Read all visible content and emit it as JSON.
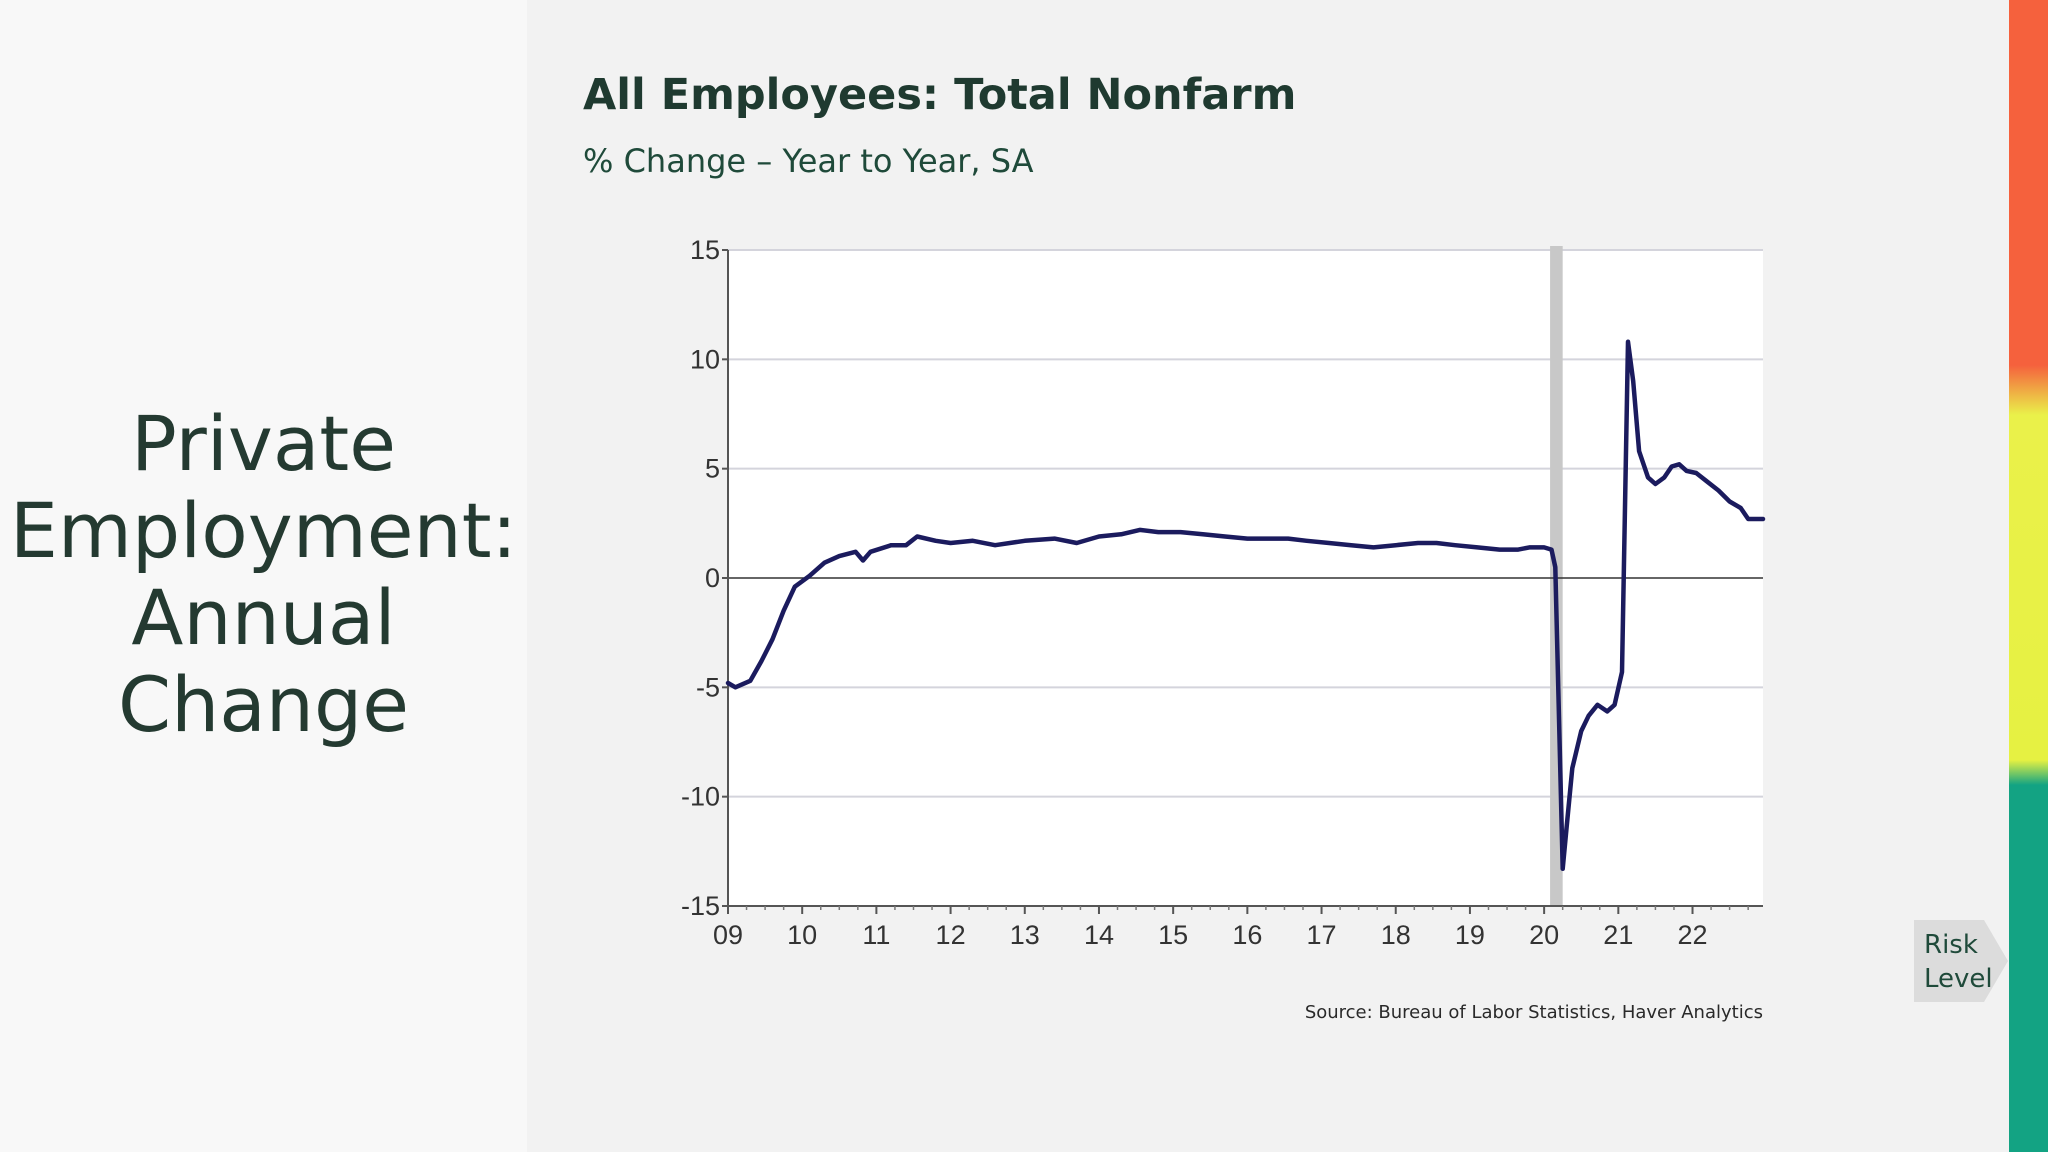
{
  "slide_title_lines": [
    "Private",
    "Employment:",
    "Annual",
    "Change"
  ],
  "risk_label": "Risk Level",
  "colors": {
    "line": "#1b1b5e",
    "recession": "#c8c8c8",
    "risk_high": "#f5613d",
    "risk_medium": "#e6f142",
    "risk_low": "#13a383"
  },
  "chart_data": {
    "type": "line",
    "title": "All Employees: Total Nonfarm",
    "subtitle": "% Change – Year to Year, SA",
    "source": "Source: Bureau of Labor Statistics, Haver Analytics",
    "xlabel": "",
    "ylabel": "",
    "xlim": [
      2009.0,
      2022.95
    ],
    "ylim": [
      -15,
      15
    ],
    "yticks": [
      15,
      10,
      5,
      0,
      -5,
      -10,
      -15
    ],
    "xticks": [
      {
        "x": 2009.0,
        "label": "09"
      },
      {
        "x": 2010.0,
        "label": "10"
      },
      {
        "x": 2011.0,
        "label": "11"
      },
      {
        "x": 2012.0,
        "label": "12"
      },
      {
        "x": 2013.0,
        "label": "13"
      },
      {
        "x": 2014.0,
        "label": "14"
      },
      {
        "x": 2015.0,
        "label": "15"
      },
      {
        "x": 2016.0,
        "label": "16"
      },
      {
        "x": 2017.0,
        "label": "17"
      },
      {
        "x": 2018.0,
        "label": "18"
      },
      {
        "x": 2019.0,
        "label": "19"
      },
      {
        "x": 2020.0,
        "label": "20"
      },
      {
        "x": 2021.0,
        "label": "21"
      },
      {
        "x": 2022.0,
        "label": "22"
      }
    ],
    "grid": true,
    "recession_shading": [
      [
        2020.08,
        2020.25
      ]
    ],
    "series": [
      {
        "points": [
          [
            2009.0,
            -4.8
          ],
          [
            2009.1,
            -5.0
          ],
          [
            2009.3,
            -4.7
          ],
          [
            2009.45,
            -3.8
          ],
          [
            2009.6,
            -2.8
          ],
          [
            2009.75,
            -1.5
          ],
          [
            2009.9,
            -0.4
          ],
          [
            2010.1,
            0.1
          ],
          [
            2010.3,
            0.7
          ],
          [
            2010.5,
            1.0
          ],
          [
            2010.72,
            1.2
          ],
          [
            2010.82,
            0.8
          ],
          [
            2010.92,
            1.2
          ],
          [
            2011.2,
            1.5
          ],
          [
            2011.4,
            1.5
          ],
          [
            2011.55,
            1.9
          ],
          [
            2011.8,
            1.7
          ],
          [
            2012.0,
            1.6
          ],
          [
            2012.3,
            1.7
          ],
          [
            2012.6,
            1.5
          ],
          [
            2013.0,
            1.7
          ],
          [
            2013.4,
            1.8
          ],
          [
            2013.7,
            1.6
          ],
          [
            2014.0,
            1.9
          ],
          [
            2014.3,
            2.0
          ],
          [
            2014.55,
            2.2
          ],
          [
            2014.8,
            2.1
          ],
          [
            2015.1,
            2.1
          ],
          [
            2015.4,
            2.0
          ],
          [
            2015.7,
            1.9
          ],
          [
            2016.0,
            1.8
          ],
          [
            2016.3,
            1.8
          ],
          [
            2016.55,
            1.8
          ],
          [
            2016.8,
            1.7
          ],
          [
            2017.1,
            1.6
          ],
          [
            2017.4,
            1.5
          ],
          [
            2017.7,
            1.4
          ],
          [
            2018.0,
            1.5
          ],
          [
            2018.3,
            1.6
          ],
          [
            2018.55,
            1.6
          ],
          [
            2018.8,
            1.5
          ],
          [
            2019.1,
            1.4
          ],
          [
            2019.4,
            1.3
          ],
          [
            2019.65,
            1.3
          ],
          [
            2019.8,
            1.4
          ],
          [
            2020.0,
            1.4
          ],
          [
            2020.1,
            1.3
          ],
          [
            2020.15,
            0.5
          ],
          [
            2020.25,
            -13.3
          ],
          [
            2020.3,
            -11.5
          ],
          [
            2020.38,
            -8.7
          ],
          [
            2020.5,
            -7.0
          ],
          [
            2020.6,
            -6.3
          ],
          [
            2020.72,
            -5.8
          ],
          [
            2020.85,
            -6.1
          ],
          [
            2020.95,
            -5.8
          ],
          [
            2021.05,
            -4.3
          ],
          [
            2021.13,
            10.8
          ],
          [
            2021.2,
            9.0
          ],
          [
            2021.28,
            5.8
          ],
          [
            2021.4,
            4.6
          ],
          [
            2021.5,
            4.3
          ],
          [
            2021.62,
            4.6
          ],
          [
            2021.72,
            5.1
          ],
          [
            2021.82,
            5.2
          ],
          [
            2021.92,
            4.9
          ],
          [
            2022.05,
            4.8
          ],
          [
            2022.2,
            4.4
          ],
          [
            2022.35,
            4.0
          ],
          [
            2022.5,
            3.5
          ],
          [
            2022.65,
            3.2
          ],
          [
            2022.75,
            2.7
          ],
          [
            2022.95,
            2.7
          ]
        ]
      }
    ]
  }
}
